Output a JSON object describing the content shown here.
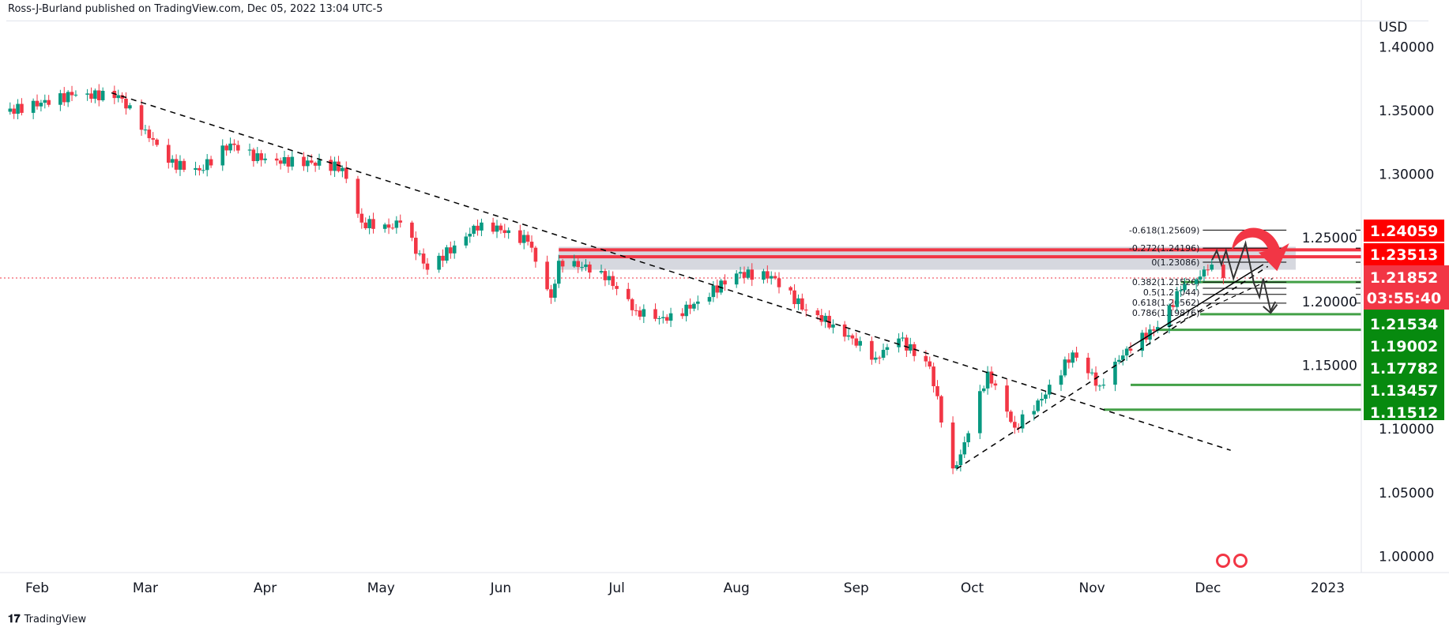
{
  "header": {
    "published": "Ross-J-Burland published on TradingView.com, Dec 05, 2022 13:04 UTC-5"
  },
  "footer": {
    "logo_text": "TradingView",
    "logo_glyph": "𝟏𝟕"
  },
  "colors": {
    "up": "#089981",
    "down": "#f23645",
    "zone": "#d1d4dc",
    "resistance": "#f23645",
    "support": "#43a047",
    "label_red": "#ff0000",
    "label_green": "#078a0f",
    "label_current": "#f23645"
  },
  "chart_data": {
    "type": "candlestick",
    "symbol_currency": "USD",
    "title": "",
    "ylim": [
      0.99,
      1.41
    ],
    "y_ticks": [
      "1.40000",
      "1.35000",
      "1.30000",
      "1.25000",
      "1.20000",
      "1.15000",
      "1.10000",
      "1.05000",
      "1.00000"
    ],
    "y_tick_values": [
      1.4,
      1.35,
      1.3,
      1.25,
      1.2,
      1.15,
      1.1,
      1.05,
      1.0
    ],
    "x_ticks": [
      {
        "label": "Feb",
        "date": "2022-02-01"
      },
      {
        "label": "Mar",
        "date": "2022-03-01"
      },
      {
        "label": "Apr",
        "date": "2022-04-01"
      },
      {
        "label": "May",
        "date": "2022-05-01"
      },
      {
        "label": "Jun",
        "date": "2022-06-01"
      },
      {
        "label": "Jul",
        "date": "2022-07-01"
      },
      {
        "label": "Aug",
        "date": "2022-08-01"
      },
      {
        "label": "Sep",
        "date": "2022-09-01"
      },
      {
        "label": "Oct",
        "date": "2022-10-01"
      },
      {
        "label": "Nov",
        "date": "2022-11-01"
      },
      {
        "label": "Dec",
        "date": "2022-12-01"
      },
      {
        "label": "2023",
        "date": "2023-01-01"
      }
    ],
    "key_closes": [
      [
        "2022-01-24",
        1.349
      ],
      [
        "2022-02-10",
        1.362
      ],
      [
        "2022-02-22",
        1.362
      ],
      [
        "2022-03-01",
        1.335
      ],
      [
        "2022-03-07",
        1.309
      ],
      [
        "2022-03-15",
        1.303
      ],
      [
        "2022-03-23",
        1.324
      ],
      [
        "2022-03-31",
        1.311
      ],
      [
        "2022-04-13",
        1.309
      ],
      [
        "2022-04-21",
        1.305
      ],
      [
        "2022-04-26",
        1.262
      ],
      [
        "2022-05-03",
        1.258
      ],
      [
        "2022-05-06",
        1.262
      ],
      [
        "2022-05-13",
        1.225
      ],
      [
        "2022-05-20",
        1.244
      ],
      [
        "2022-05-27",
        1.262
      ],
      [
        "2022-06-01",
        1.256
      ],
      [
        "2022-06-08",
        1.247
      ],
      [
        "2022-06-14",
        1.203
      ],
      [
        "2022-06-16",
        1.232
      ],
      [
        "2022-06-27",
        1.224
      ],
      [
        "2022-07-06",
        1.193
      ],
      [
        "2022-07-14",
        1.185
      ],
      [
        "2022-07-22",
        1.2
      ],
      [
        "2022-08-01",
        1.222
      ],
      [
        "2022-08-10",
        1.22
      ],
      [
        "2022-08-19",
        1.193
      ],
      [
        "2022-08-26",
        1.182
      ],
      [
        "2022-09-06",
        1.156
      ],
      [
        "2022-09-12",
        1.171
      ],
      [
        "2022-09-20",
        1.149
      ],
      [
        "2022-09-26",
        1.069
      ],
      [
        "2022-09-28",
        1.08
      ],
      [
        "2022-10-05",
        1.145
      ],
      [
        "2022-10-12",
        1.101
      ],
      [
        "2022-10-20",
        1.127
      ],
      [
        "2022-10-27",
        1.16
      ],
      [
        "2022-11-03",
        1.134
      ],
      [
        "2022-11-10",
        1.163
      ],
      [
        "2022-11-18",
        1.18
      ],
      [
        "2022-11-24",
        1.209
      ],
      [
        "2022-12-01",
        1.225
      ],
      [
        "2022-12-02",
        1.229
      ],
      [
        "2022-12-05",
        1.21852
      ]
    ],
    "current_price": "1.21852",
    "countdown": "03:55:40",
    "resistance_zone": [
      1.225,
      1.243
    ],
    "resistance_labels": [
      "1.24059",
      "1.23513"
    ],
    "resistance_values": [
      1.24059,
      1.23513
    ],
    "support_labels": [
      "1.21534",
      "1.19002",
      "1.17782",
      "1.13457",
      "1.11512"
    ],
    "support_values": [
      1.21534,
      1.19002,
      1.17782,
      1.13457,
      1.11512
    ],
    "fib_levels": [
      {
        "label": "-0.618(1.25609)",
        "value": 1.25609
      },
      {
        "label": "-0.272(1.24196)",
        "value": 1.24196
      },
      {
        "label": "0(1.23086)",
        "value": 1.23086
      },
      {
        "label": "0.382(1.21526)",
        "value": 1.21526
      },
      {
        "label": "0.5(1.21044)",
        "value": 1.21044
      },
      {
        "label": "0.618(1.20562)",
        "value": 1.20562
      },
      {
        "label": "0.786(1.19876)",
        "value": 1.19876
      }
    ]
  }
}
